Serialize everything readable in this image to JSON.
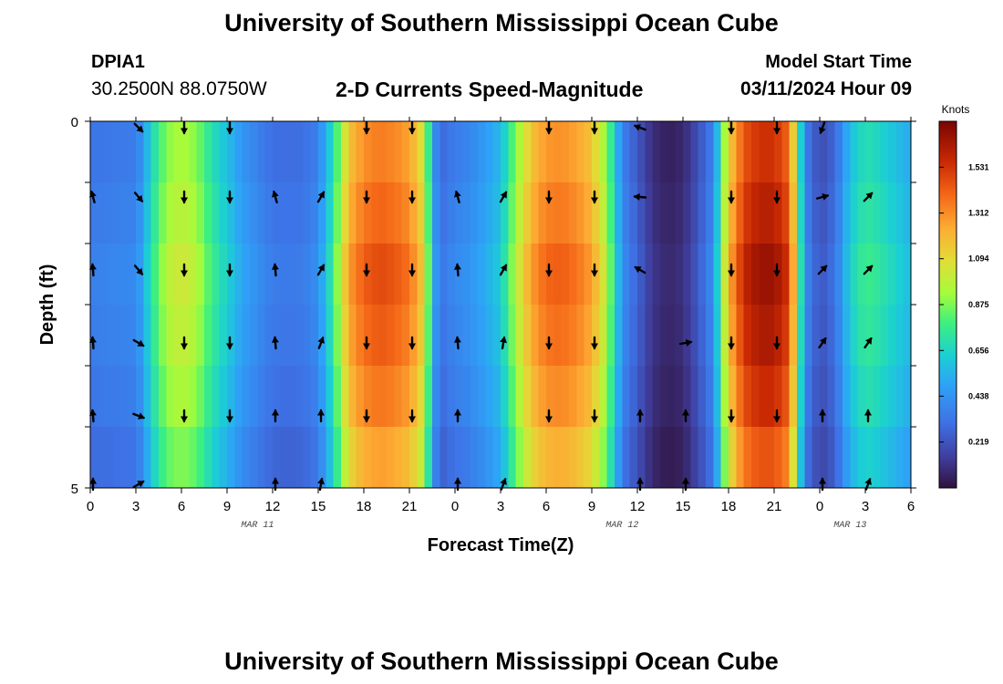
{
  "header": {
    "title": "University of Southern Mississippi Ocean Cube",
    "station_id": "DPIA1",
    "coordinates": "30.2500N  88.0750W",
    "chart_title": "2-D Currents Speed-Magnitude",
    "model_start_label": "Model Start Time",
    "model_start_value": "03/11/2024 Hour 09"
  },
  "footer": {
    "title": "University of Southern Mississippi Ocean Cube"
  },
  "chart_data": {
    "type": "heatmap",
    "title": "2-D Currents Speed-Magnitude",
    "xlabel": "Forecast Time(Z)",
    "ylabel": "Depth (ft)",
    "x_hours": [
      0,
      3,
      6,
      9,
      12,
      15,
      18,
      21,
      24,
      27,
      30,
      33,
      36,
      39,
      42,
      45,
      48,
      51,
      54
    ],
    "x_tick_labels": [
      "0",
      "3",
      "6",
      "9",
      "12",
      "15",
      "18",
      "21",
      "0",
      "3",
      "6",
      "9",
      "12",
      "15",
      "18",
      "21",
      "0",
      "3",
      "6"
    ],
    "date_labels": [
      {
        "hour": 11,
        "text": "MAR 11"
      },
      {
        "hour": 35,
        "text": "MAR 12"
      },
      {
        "hour": 50,
        "text": "MAR 13"
      }
    ],
    "y_range": [
      0,
      5
    ],
    "y_tick_labels": [
      "0",
      "5"
    ],
    "depth_levels": 6,
    "colorbar": {
      "label": "Knots",
      "min": 0.0,
      "max": 1.75,
      "ticks": [
        0.219,
        0.438,
        0.656,
        0.875,
        1.094,
        1.312,
        1.531
      ]
    },
    "speed_profile_knots": [
      [
        0,
        0.35
      ],
      [
        3,
        0.38
      ],
      [
        3.5,
        0.5
      ],
      [
        4,
        0.7
      ],
      [
        5,
        0.95
      ],
      [
        6,
        1.02
      ],
      [
        7,
        0.95
      ],
      [
        8,
        0.75
      ],
      [
        9,
        0.62
      ],
      [
        10,
        0.48
      ],
      [
        11,
        0.4
      ],
      [
        12,
        0.33
      ],
      [
        13,
        0.32
      ],
      [
        14,
        0.33
      ],
      [
        15,
        0.4
      ],
      [
        16,
        0.75
      ],
      [
        17,
        1.25
      ],
      [
        18,
        1.4
      ],
      [
        19,
        1.45
      ],
      [
        20,
        1.42
      ],
      [
        21,
        1.35
      ],
      [
        22,
        1.1
      ],
      [
        22.5,
        0.55
      ],
      [
        23,
        0.3
      ],
      [
        24,
        0.38
      ],
      [
        25,
        0.42
      ],
      [
        26,
        0.5
      ],
      [
        27,
        0.6
      ],
      [
        28,
        0.95
      ],
      [
        29,
        1.25
      ],
      [
        30,
        1.38
      ],
      [
        31,
        1.4
      ],
      [
        32,
        1.35
      ],
      [
        33,
        1.25
      ],
      [
        34,
        0.95
      ],
      [
        35,
        0.4
      ],
      [
        36,
        0.25
      ],
      [
        37,
        0.1
      ],
      [
        38,
        0.05
      ],
      [
        39,
        0.08
      ],
      [
        40,
        0.22
      ],
      [
        41,
        0.4
      ],
      [
        42,
        1.2
      ],
      [
        43,
        1.55
      ],
      [
        44,
        1.65
      ],
      [
        45,
        1.65
      ],
      [
        46,
        1.5
      ],
      [
        46.5,
        0.95
      ],
      [
        47,
        0.4
      ],
      [
        48,
        0.2
      ],
      [
        49,
        0.3
      ],
      [
        50,
        0.62
      ],
      [
        51,
        0.75
      ],
      [
        52,
        0.7
      ],
      [
        54,
        0.55
      ]
    ],
    "depth_factors": [
      0.85,
      0.92,
      1.0,
      0.95,
      0.87,
      0.75
    ],
    "vector_hours": [
      0,
      3,
      6,
      9,
      12,
      15,
      18,
      21,
      24,
      27,
      30,
      33,
      36,
      39,
      42,
      45,
      48,
      51
    ],
    "vector_directions_deg": [
      [
        null,
        135,
        180,
        180,
        null,
        null,
        180,
        180,
        null,
        null,
        180,
        180,
        290,
        null,
        180,
        180,
        200,
        null
      ],
      [
        345,
        140,
        180,
        180,
        345,
        30,
        180,
        180,
        345,
        30,
        180,
        180,
        275,
        null,
        180,
        180,
        75,
        45
      ],
      [
        355,
        140,
        180,
        180,
        355,
        30,
        180,
        180,
        355,
        30,
        180,
        180,
        300,
        null,
        180,
        180,
        45,
        45
      ],
      [
        355,
        120,
        180,
        180,
        355,
        20,
        180,
        180,
        355,
        10,
        180,
        180,
        null,
        80,
        180,
        180,
        35,
        35
      ],
      [
        355,
        110,
        180,
        180,
        0,
        0,
        180,
        180,
        0,
        null,
        180,
        180,
        0,
        0,
        180,
        180,
        0,
        0
      ],
      [
        0,
        60,
        null,
        null,
        0,
        10,
        null,
        null,
        0,
        20,
        null,
        null,
        0,
        0,
        null,
        null,
        0,
        20
      ]
    ]
  }
}
